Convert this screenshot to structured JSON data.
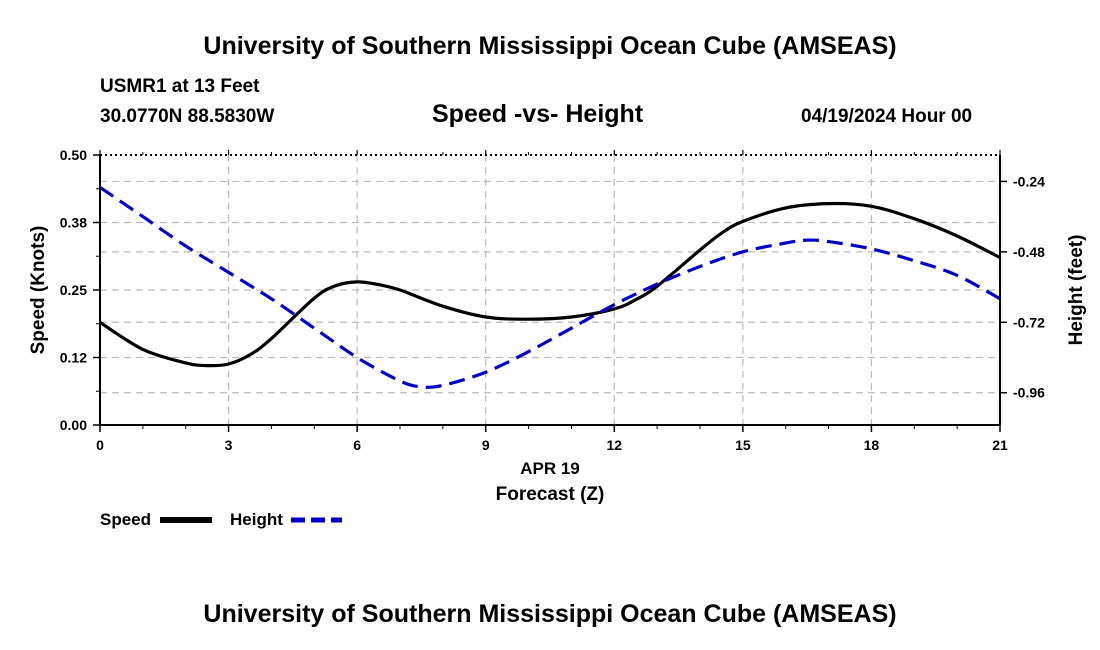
{
  "header": {
    "title": "University of Southern Mississippi Ocean Cube (AMSEAS)",
    "station": "USMR1 at 13 Feet",
    "coords": "30.0770N  88.5830W",
    "subtitle": "Speed -vs- Height",
    "datetime": "04/19/2024 Hour 00"
  },
  "footer": {
    "title": "University of Southern Mississippi Ocean Cube (AMSEAS)"
  },
  "colors": {
    "speed": "#000000",
    "height": "#0000cc",
    "grid": "#bbbbbb"
  },
  "chart_data": {
    "type": "line",
    "title": "Speed -vs- Height",
    "xlabel": "Forecast (Z)",
    "xlabel_date": "APR 19",
    "ylabel": "Speed (Knots)",
    "y2label": "Height (feet)",
    "xlim": [
      0,
      21
    ],
    "ylim": [
      0,
      0.5
    ],
    "y2lim": [
      -1.07,
      -0.15
    ],
    "x_ticks": [
      0,
      3,
      6,
      9,
      12,
      15,
      18,
      21
    ],
    "x_tick_labels": [
      "0",
      "3",
      "6",
      "9",
      "12",
      "15",
      "18",
      "21"
    ],
    "y_ticks": [
      0,
      0.125,
      0.25,
      0.375,
      0.5
    ],
    "y_tick_labels": [
      "0.00",
      "0.12",
      "0.25",
      "0.38",
      "0.50"
    ],
    "y2_ticks": [
      -0.24,
      -0.48,
      -0.72,
      -0.96
    ],
    "y2_tick_labels": [
      "-0.24",
      "-0.48",
      "-0.72",
      "-0.96"
    ],
    "legend": [
      {
        "name": "Speed",
        "style": "solid"
      },
      {
        "name": "Height",
        "style": "dashed"
      }
    ],
    "series": [
      {
        "name": "Speed",
        "axis": "left",
        "x": [
          0,
          1,
          2,
          2.5,
          3,
          3.5,
          4,
          5,
          5.5,
          6,
          6.5,
          7,
          8,
          9,
          10,
          11,
          12,
          12.5,
          13,
          14,
          14.5,
          15,
          16,
          17,
          18,
          19,
          20,
          21
        ],
        "values": [
          0.19,
          0.14,
          0.115,
          0.11,
          0.113,
          0.13,
          0.16,
          0.235,
          0.258,
          0.265,
          0.26,
          0.25,
          0.22,
          0.2,
          0.196,
          0.2,
          0.215,
          0.232,
          0.257,
          0.324,
          0.355,
          0.377,
          0.402,
          0.41,
          0.405,
          0.382,
          0.35,
          0.31
        ]
      },
      {
        "name": "Height",
        "axis": "right",
        "x": [
          0,
          1,
          2,
          3,
          4,
          5,
          6,
          7,
          7.5,
          8,
          9,
          10,
          11,
          12,
          13,
          14,
          15,
          16,
          16.5,
          17,
          18,
          19,
          20,
          21
        ],
        "values": [
          -0.26,
          -0.36,
          -0.46,
          -0.55,
          -0.64,
          -0.74,
          -0.84,
          -0.92,
          -0.94,
          -0.935,
          -0.89,
          -0.82,
          -0.74,
          -0.66,
          -0.59,
          -0.53,
          -0.48,
          -0.45,
          -0.44,
          -0.445,
          -0.47,
          -0.51,
          -0.56,
          -0.64
        ]
      }
    ]
  }
}
